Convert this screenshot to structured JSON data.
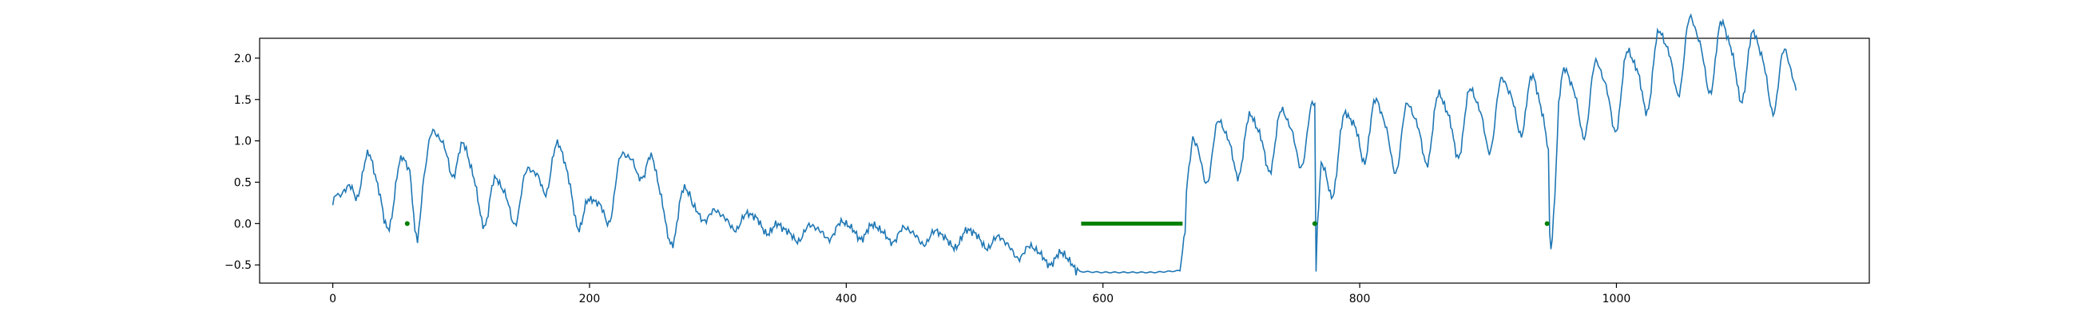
{
  "chart_data": {
    "type": "line",
    "title": "",
    "xlabel": "",
    "ylabel": "",
    "xlim": [
      -57,
      1197
    ],
    "ylim": [
      -0.72,
      2.24
    ],
    "x_ticks": [
      0,
      200,
      400,
      600,
      800,
      1000
    ],
    "x_tick_labels": [
      "0",
      "200",
      "400",
      "600",
      "800",
      "1000"
    ],
    "y_ticks": [
      -0.5,
      0.0,
      0.5,
      1.0,
      1.5,
      2.0
    ],
    "y_tick_labels": [
      "−0.5",
      "0.0",
      "0.5",
      "1.0",
      "1.5",
      "2.0"
    ],
    "grid": false,
    "legend": "none",
    "colors": {
      "series": "#1f77b4",
      "markers": "#008000",
      "axes": "#000000"
    },
    "series": [
      {
        "type": "line",
        "num_points": 1141,
        "waveform_keypoints": [
          [
            0,
            0.18
          ],
          [
            5,
            0.05
          ],
          [
            15,
            0.55
          ],
          [
            22,
            0.72
          ],
          [
            28,
            0.58
          ],
          [
            40,
            0.2
          ],
          [
            55,
            0.55
          ],
          [
            58,
            0.55
          ],
          [
            60,
            0.55
          ],
          [
            65,
            -0.12
          ],
          [
            70,
            0.75
          ],
          [
            90,
            0.98
          ],
          [
            120,
            0.25
          ],
          [
            150,
            0.35
          ],
          [
            170,
            0.78
          ],
          [
            180,
            0.62
          ],
          [
            200,
            0.0
          ],
          [
            240,
            0.9
          ],
          [
            260,
            0.05
          ],
          [
            280,
            0.2
          ],
          [
            300,
            0.06
          ],
          [
            315,
            0.02
          ],
          [
            330,
            0.05
          ],
          [
            350,
            -0.12
          ],
          [
            380,
            -0.1
          ],
          [
            400,
            -0.06
          ],
          [
            430,
            -0.12
          ],
          [
            460,
            -0.15
          ],
          [
            480,
            -0.2
          ],
          [
            500,
            -0.15
          ],
          [
            520,
            -0.25
          ],
          [
            540,
            -0.35
          ],
          [
            560,
            -0.4
          ],
          [
            570,
            -0.45
          ],
          [
            578,
            -0.52
          ],
          [
            582,
            -0.58
          ],
          [
            600,
            -0.59
          ],
          [
            620,
            -0.59
          ],
          [
            640,
            -0.59
          ],
          [
            650,
            -0.58
          ],
          [
            660,
            -0.57
          ],
          [
            665,
            0.05
          ],
          [
            670,
            0.85
          ],
          [
            700,
            0.95
          ],
          [
            740,
            1.05
          ],
          [
            765,
            1.1
          ],
          [
            766,
            -0.58
          ],
          [
            770,
            0.6
          ],
          [
            800,
            1.2
          ],
          [
            830,
            1.05
          ],
          [
            860,
            1.2
          ],
          [
            900,
            1.3
          ],
          [
            930,
            1.55
          ],
          [
            947,
            1.1
          ],
          [
            948,
            -0.12
          ],
          [
            955,
            1.45
          ],
          [
            980,
            1.55
          ],
          [
            1000,
            1.6
          ],
          [
            1030,
            1.9
          ],
          [
            1055,
            2.1
          ],
          [
            1080,
            2.05
          ],
          [
            1100,
            1.95
          ],
          [
            1120,
            1.85
          ],
          [
            1140,
            1.58
          ]
        ]
      },
      {
        "type": "marker",
        "points": [
          [
            58,
            0.0
          ],
          [
            765,
            0.0
          ],
          [
            946,
            0.0
          ]
        ]
      },
      {
        "type": "segment",
        "points": [
          [
            583,
            0.0
          ],
          [
            662,
            0.0
          ]
        ]
      }
    ]
  }
}
